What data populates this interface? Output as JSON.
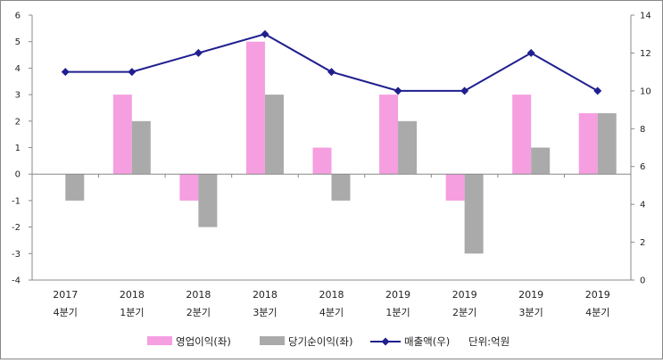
{
  "chart_data": {
    "type": "bar+line",
    "categories": [
      [
        "2017",
        "4분기"
      ],
      [
        "2018",
        "1분기"
      ],
      [
        "2018",
        "2분기"
      ],
      [
        "2018",
        "3분기"
      ],
      [
        "2018",
        "4분기"
      ],
      [
        "2019",
        "1분기"
      ],
      [
        "2019",
        "2분기"
      ],
      [
        "2019",
        "3분기"
      ],
      [
        "2019",
        "4분기"
      ]
    ],
    "bar_series": [
      {
        "name": "영업이익(좌)",
        "color": "#f59ee0",
        "values": [
          0,
          3,
          -1,
          5,
          1,
          3,
          -1,
          3,
          2.3
        ]
      },
      {
        "name": "당기순이익(좌)",
        "color": "#aaaaaa",
        "values": [
          -1,
          2,
          -2,
          3,
          -1,
          2,
          -3,
          1,
          2.3
        ]
      }
    ],
    "line_series": [
      {
        "name": "매출액(우)",
        "color": "#1f1f8f",
        "marker": "diamond",
        "values": [
          11,
          11,
          12,
          13,
          11,
          10,
          10,
          12,
          10
        ]
      }
    ],
    "left_axis": {
      "min": -4,
      "max": 6,
      "step": 1,
      "ticks": [
        "-4",
        "-3",
        "-2",
        "-1",
        "0",
        "1",
        "2",
        "3",
        "4",
        "5",
        "6"
      ]
    },
    "right_axis": {
      "min": 0,
      "max": 14,
      "step": 2,
      "ticks": [
        "0",
        "2",
        "4",
        "6",
        "8",
        "10",
        "12",
        "14"
      ]
    },
    "unit_label": "단위:억원",
    "legend_position": "bottom",
    "grid": false
  }
}
